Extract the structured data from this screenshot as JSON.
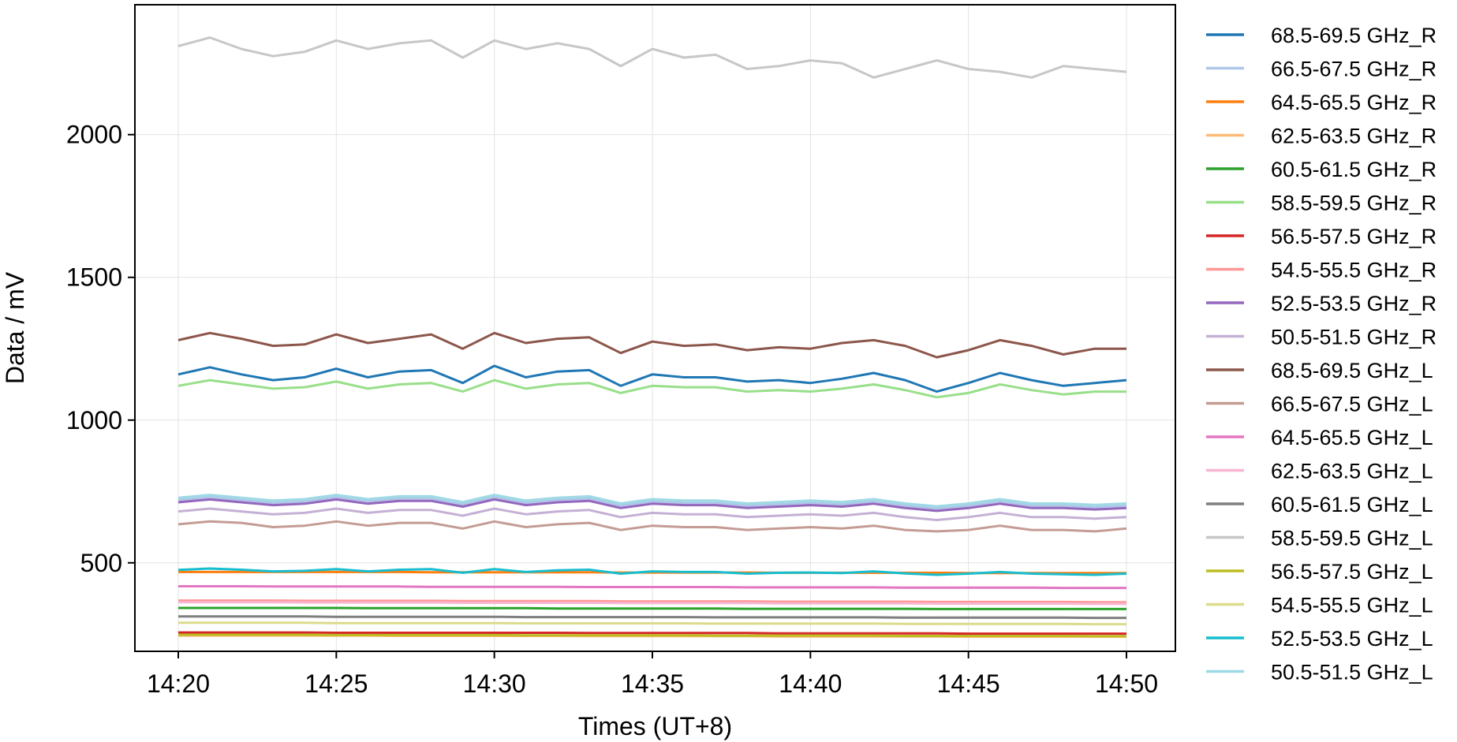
{
  "chart_data": {
    "type": "line",
    "title": "",
    "xlabel": "Times (UT+8)",
    "ylabel": "Data / mV",
    "x_ticks": [
      "14:20",
      "14:25",
      "14:30",
      "14:35",
      "14:40",
      "14:45",
      "14:50"
    ],
    "x_range": [
      "14:20",
      "14:50"
    ],
    "y_ticks": [
      500,
      1000,
      1500,
      2000
    ],
    "ylim": [
      190,
      2455
    ],
    "grid": true,
    "legend_position": "outside-right",
    "x_time_minutes": [
      0,
      1,
      2,
      3,
      4,
      5,
      6,
      7,
      8,
      9,
      10,
      11,
      12,
      13,
      14,
      15,
      16,
      17,
      18,
      19,
      20,
      21,
      22,
      23,
      24,
      25,
      26,
      27,
      28,
      29,
      30
    ],
    "series": [
      {
        "name": "68.5-69.5 GHz_R",
        "color": "#1f77b4",
        "values": [
          1160,
          1185,
          1160,
          1140,
          1150,
          1180,
          1150,
          1170,
          1175,
          1130,
          1190,
          1150,
          1170,
          1175,
          1120,
          1160,
          1150,
          1150,
          1135,
          1140,
          1130,
          1145,
          1165,
          1140,
          1100,
          1130,
          1165,
          1140,
          1120,
          1130,
          1140
        ]
      },
      {
        "name": "66.5-67.5 GHz_R",
        "color": "#aec7e8",
        "values": [
          720,
          730,
          720,
          710,
          715,
          730,
          715,
          725,
          725,
          705,
          730,
          710,
          720,
          725,
          700,
          715,
          710,
          710,
          700,
          705,
          710,
          705,
          715,
          700,
          690,
          700,
          715,
          700,
          700,
          695,
          700
        ]
      },
      {
        "name": "64.5-65.5 GHz_R",
        "color": "#ff7f0e",
        "values": [
          468,
          468,
          468,
          468,
          468,
          468,
          468,
          468,
          467,
          467,
          467,
          467,
          467,
          467,
          466,
          466,
          466,
          466,
          466,
          465,
          465,
          465,
          465,
          465,
          465,
          464,
          464,
          464,
          464,
          464,
          464
        ]
      },
      {
        "name": "62.5-63.5 GHz_R",
        "color": "#ffbb78",
        "values": [
          245,
          245,
          245,
          245,
          245,
          245,
          245,
          244,
          244,
          244,
          244,
          244,
          244,
          243,
          243,
          243,
          243,
          243,
          243,
          242,
          242,
          242,
          242,
          242,
          242,
          241,
          241,
          241,
          241,
          241,
          241
        ]
      },
      {
        "name": "60.5-61.5 GHz_R",
        "color": "#2ca02c",
        "values": [
          342,
          342,
          342,
          342,
          342,
          342,
          341,
          341,
          341,
          341,
          341,
          341,
          340,
          340,
          340,
          340,
          340,
          340,
          339,
          339,
          339,
          339,
          339,
          339,
          338,
          338,
          338,
          338,
          338,
          338,
          338
        ]
      },
      {
        "name": "58.5-59.5 GHz_R",
        "color": "#98df8a",
        "values": [
          1120,
          1140,
          1125,
          1110,
          1115,
          1135,
          1110,
          1125,
          1130,
          1100,
          1140,
          1110,
          1125,
          1130,
          1095,
          1120,
          1115,
          1115,
          1100,
          1105,
          1100,
          1110,
          1125,
          1105,
          1080,
          1095,
          1125,
          1105,
          1090,
          1100,
          1100
        ]
      },
      {
        "name": "56.5-57.5 GHz_R",
        "color": "#d62728",
        "values": [
          256,
          256,
          256,
          256,
          256,
          255,
          255,
          255,
          255,
          255,
          255,
          255,
          255,
          254,
          254,
          254,
          254,
          254,
          254,
          253,
          253,
          253,
          253,
          253,
          253,
          252,
          252,
          252,
          252,
          252,
          252
        ]
      },
      {
        "name": "54.5-55.5 GHz_R",
        "color": "#ff9896",
        "values": [
          368,
          368,
          368,
          368,
          367,
          367,
          367,
          367,
          367,
          366,
          366,
          366,
          366,
          366,
          365,
          365,
          365,
          365,
          365,
          364,
          364,
          364,
          364,
          364,
          363,
          363,
          363,
          363,
          363,
          362,
          362
        ]
      },
      {
        "name": "52.5-53.5 GHz_R",
        "color": "#9467bd",
        "values": [
          712,
          722,
          712,
          702,
          707,
          722,
          707,
          717,
          717,
          697,
          722,
          702,
          712,
          717,
          692,
          707,
          702,
          702,
          692,
          697,
          702,
          697,
          707,
          692,
          682,
          692,
          707,
          692,
          692,
          687,
          692
        ]
      },
      {
        "name": "50.5-51.5 GHz_R",
        "color": "#c5b0d5",
        "values": [
          680,
          690,
          680,
          670,
          675,
          690,
          675,
          685,
          685,
          665,
          690,
          670,
          680,
          685,
          660,
          675,
          670,
          670,
          660,
          665,
          670,
          665,
          675,
          660,
          650,
          660,
          675,
          660,
          660,
          655,
          660
        ]
      },
      {
        "name": "68.5-69.5 GHz_L",
        "color": "#8c564b",
        "values": [
          1280,
          1305,
          1285,
          1260,
          1265,
          1300,
          1270,
          1285,
          1300,
          1250,
          1305,
          1270,
          1285,
          1290,
          1235,
          1275,
          1260,
          1265,
          1245,
          1255,
          1250,
          1270,
          1280,
          1260,
          1220,
          1245,
          1280,
          1260,
          1230,
          1250,
          1250
        ]
      },
      {
        "name": "66.5-67.5 GHz_L",
        "color": "#c49c94",
        "values": [
          635,
          645,
          640,
          625,
          630,
          645,
          630,
          640,
          640,
          620,
          645,
          625,
          635,
          640,
          615,
          630,
          625,
          625,
          615,
          620,
          625,
          620,
          630,
          615,
          610,
          615,
          630,
          615,
          615,
          610,
          620
        ]
      },
      {
        "name": "64.5-65.5 GHz_L",
        "color": "#e377c2",
        "values": [
          418,
          418,
          418,
          417,
          417,
          417,
          417,
          417,
          416,
          416,
          416,
          416,
          416,
          415,
          415,
          415,
          415,
          415,
          414,
          414,
          414,
          414,
          414,
          413,
          413,
          413,
          413,
          413,
          412,
          412,
          412
        ]
      },
      {
        "name": "62.5-63.5 GHz_L",
        "color": "#f7b6d2",
        "values": [
          362,
          362,
          362,
          362,
          361,
          361,
          361,
          361,
          361,
          360,
          360,
          360,
          360,
          360,
          359,
          359,
          359,
          359,
          359,
          358,
          358,
          358,
          358,
          358,
          357,
          357,
          357,
          357,
          357,
          356,
          356
        ]
      },
      {
        "name": "60.5-61.5 GHz_L",
        "color": "#7f7f7f",
        "values": [
          312,
          312,
          312,
          312,
          312,
          311,
          311,
          311,
          311,
          311,
          311,
          310,
          310,
          310,
          310,
          310,
          310,
          309,
          309,
          309,
          309,
          309,
          309,
          308,
          308,
          308,
          308,
          308,
          308,
          307,
          307
        ]
      },
      {
        "name": "58.5-59.5 GHz_L",
        "color": "#c7c7c7",
        "values": [
          2310,
          2340,
          2300,
          2275,
          2290,
          2330,
          2300,
          2320,
          2330,
          2270,
          2330,
          2300,
          2320,
          2300,
          2240,
          2300,
          2270,
          2280,
          2230,
          2240,
          2260,
          2250,
          2200,
          2230,
          2260,
          2230,
          2220,
          2200,
          2240,
          2230,
          2220
        ]
      },
      {
        "name": "56.5-57.5 GHz_L",
        "color": "#bcbd22",
        "values": [
          248,
          248,
          248,
          248,
          248,
          247,
          247,
          247,
          247,
          247,
          247,
          246,
          246,
          246,
          246,
          246,
          246,
          245,
          245,
          245,
          245,
          245,
          245,
          244,
          244,
          244,
          244,
          244,
          244,
          243,
          243
        ]
      },
      {
        "name": "54.5-55.5 GHz_L",
        "color": "#dbdb8d",
        "values": [
          290,
          290,
          290,
          290,
          290,
          289,
          289,
          289,
          289,
          289,
          289,
          288,
          288,
          288,
          288,
          288,
          288,
          287,
          287,
          287,
          287,
          287,
          287,
          286,
          286,
          286,
          286,
          286,
          286,
          285,
          285
        ]
      },
      {
        "name": "52.5-53.5 GHz_L",
        "color": "#17becf",
        "values": [
          475,
          480,
          476,
          470,
          472,
          478,
          470,
          476,
          478,
          465,
          478,
          468,
          474,
          476,
          462,
          470,
          468,
          468,
          462,
          465,
          466,
          464,
          470,
          463,
          458,
          462,
          468,
          462,
          460,
          458,
          462
        ]
      },
      {
        "name": "50.5-51.5 GHz_L",
        "color": "#9edae5",
        "values": [
          728,
          738,
          728,
          718,
          723,
          738,
          723,
          733,
          733,
          713,
          738,
          718,
          728,
          733,
          708,
          723,
          718,
          718,
          708,
          713,
          718,
          713,
          723,
          708,
          698,
          708,
          723,
          708,
          708,
          703,
          708
        ]
      }
    ]
  }
}
